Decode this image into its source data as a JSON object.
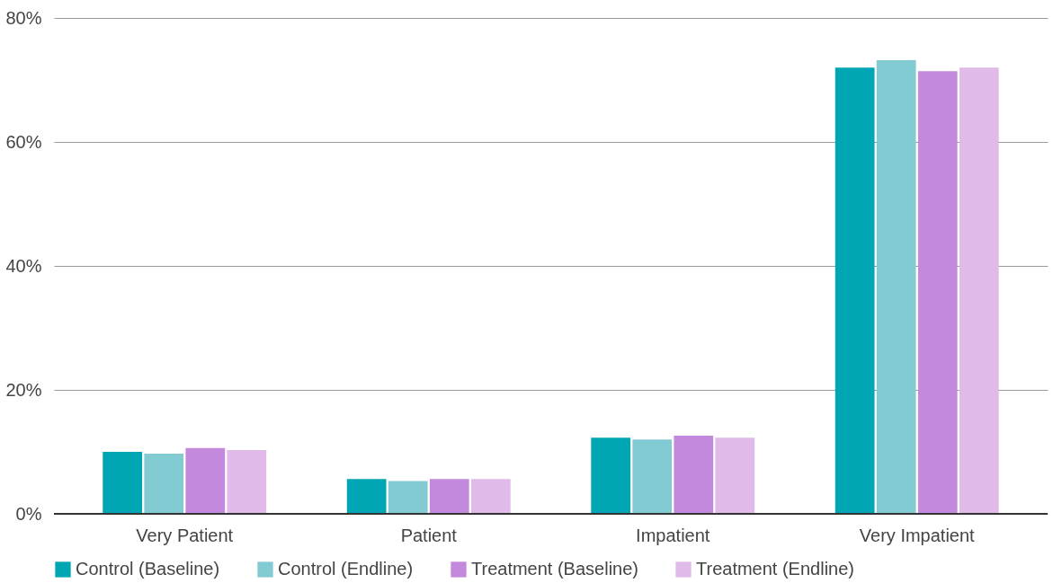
{
  "chart_data": {
    "type": "bar",
    "categories": [
      "Very Patient",
      "Patient",
      "Impatient",
      "Very Impatient"
    ],
    "series": [
      {
        "name": "Control (Baseline)",
        "color": "#00a6b4",
        "values": [
          10.0,
          5.6,
          12.3,
          72.0
        ]
      },
      {
        "name": "Control (Endline)",
        "color": "#83cbd3",
        "values": [
          9.7,
          5.3,
          12.0,
          73.2
        ]
      },
      {
        "name": "Treatment (Baseline)",
        "color": "#c389dc",
        "values": [
          10.6,
          5.6,
          12.6,
          71.4
        ]
      },
      {
        "name": "Treatment (Endline)",
        "color": "#e0bbe9",
        "values": [
          10.3,
          5.6,
          12.3,
          72.0
        ]
      }
    ],
    "ylim": [
      0,
      80
    ],
    "yticks": [
      {
        "value": 0,
        "label": "0%"
      },
      {
        "value": 20,
        "label": "20%"
      },
      {
        "value": 40,
        "label": "40%"
      },
      {
        "value": 60,
        "label": "60%"
      },
      {
        "value": 80,
        "label": "80%"
      }
    ],
    "grid": "y",
    "legend": "bottom"
  }
}
